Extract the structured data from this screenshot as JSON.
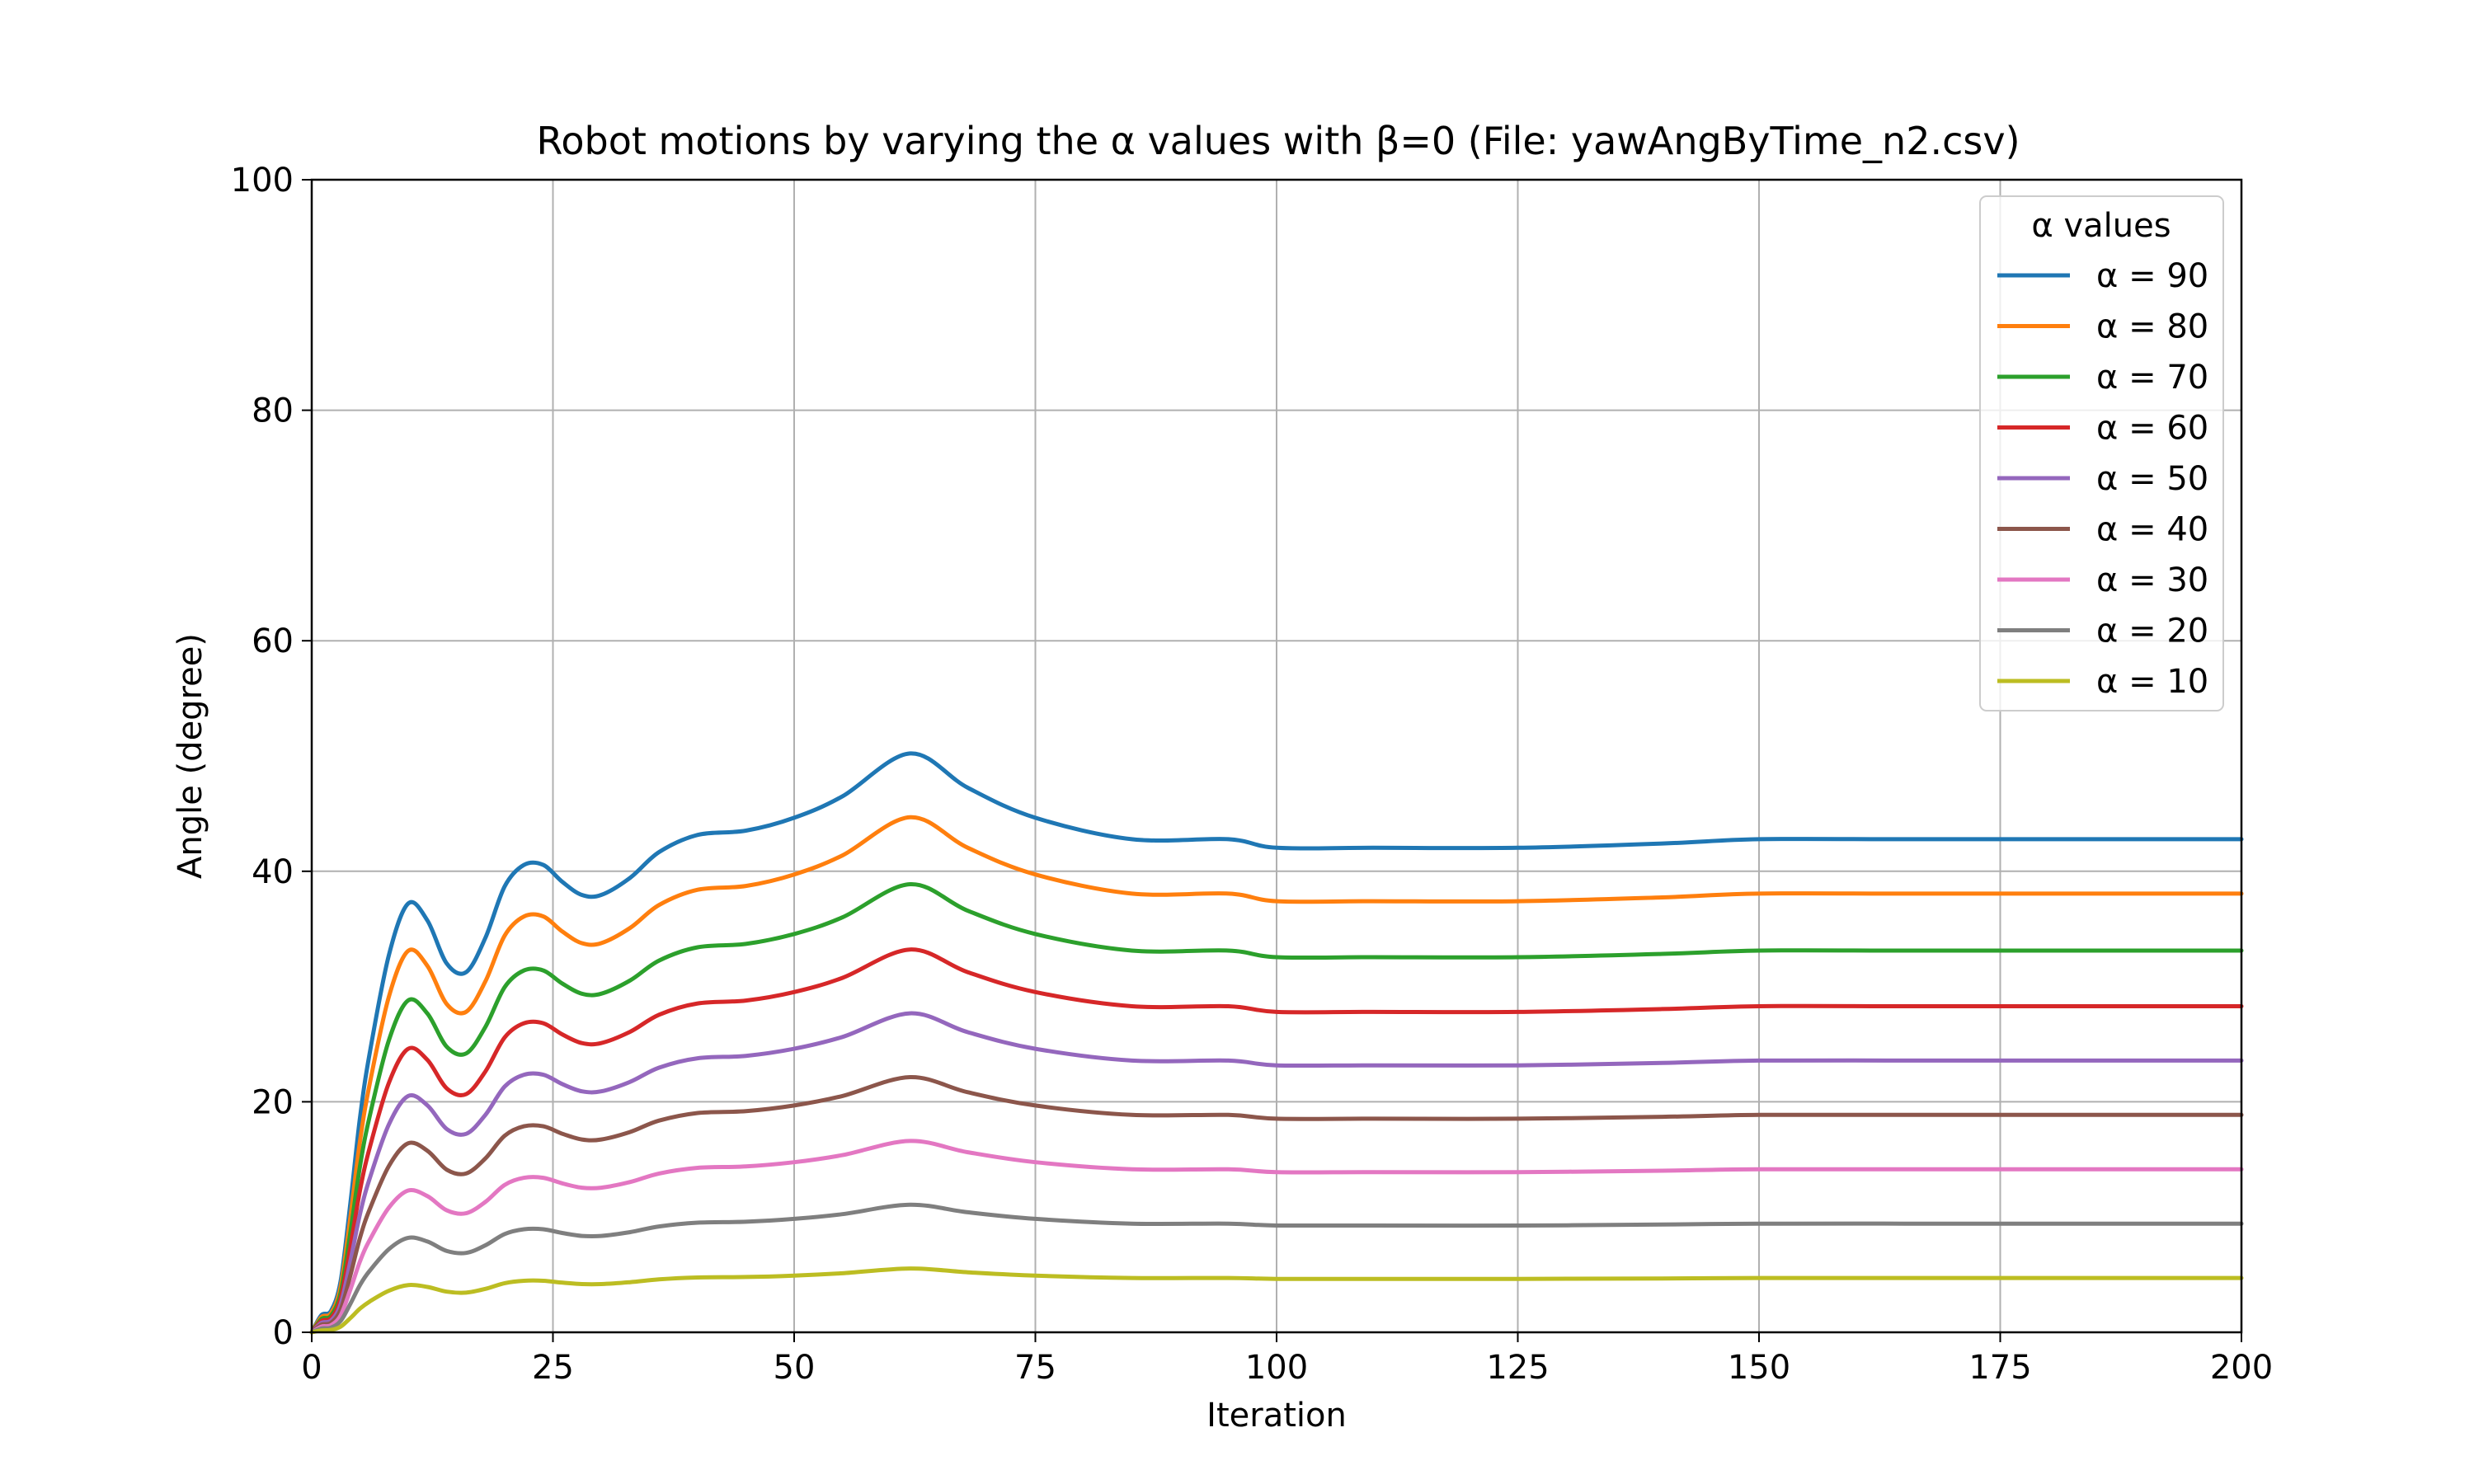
{
  "chart_data": {
    "type": "line",
    "title": "Robot motions by varying the α values with β=0 (File: yawAngByTime_n2.csv)",
    "xlabel": "Iteration",
    "ylabel": "Angle (degree)",
    "xlim": [
      0,
      200
    ],
    "ylim": [
      0,
      100
    ],
    "xticks": [
      0,
      25,
      50,
      75,
      100,
      125,
      150,
      175,
      200
    ],
    "yticks": [
      0,
      20,
      40,
      60,
      80,
      100
    ],
    "grid": true,
    "legend": {
      "title": "α values",
      "placement": "top-right"
    },
    "x": [
      0,
      1,
      2,
      3,
      4,
      5,
      6,
      8,
      10,
      12,
      14,
      16,
      18,
      20,
      22,
      24,
      26,
      28,
      30,
      33,
      36,
      40,
      45,
      50,
      55,
      62,
      68,
      75,
      85,
      95,
      100,
      110,
      125,
      140,
      150,
      165,
      180,
      200
    ],
    "profile": [
      0,
      0.04,
      0.05,
      0.12,
      0.3,
      0.5,
      0.65,
      0.88,
      1.0,
      0.96,
      0.86,
      0.84,
      0.92,
      1.04,
      1.09,
      1.09,
      1.05,
      1.02,
      1.02,
      1.06,
      1.12,
      1.16,
      1.17,
      1.2,
      1.25,
      1.35,
      1.27,
      1.2,
      1.15,
      1.15,
      1.13,
      1.13,
      1.13,
      1.14,
      1.15,
      1.15,
      1.15,
      1.15
    ],
    "series": [
      {
        "name": "α = 90",
        "color": "#1f77b4",
        "scale": 37.2
      },
      {
        "name": "α = 80",
        "color": "#ff7f0e",
        "scale": 33.1
      },
      {
        "name": "α = 70",
        "color": "#2ca02c",
        "scale": 28.8
      },
      {
        "name": "α = 60",
        "color": "#d62728",
        "scale": 24.6
      },
      {
        "name": "α = 50",
        "color": "#9467bd",
        "scale": 20.5
      },
      {
        "name": "α = 40",
        "color": "#8c564b",
        "scale": 16.4
      },
      {
        "name": "α = 30",
        "color": "#e377c2",
        "scale": 12.3
      },
      {
        "name": "α = 20",
        "color": "#7f7f7f",
        "scale": 8.2
      },
      {
        "name": "α = 10",
        "color": "#bcbd22",
        "scale": 4.1
      }
    ]
  }
}
